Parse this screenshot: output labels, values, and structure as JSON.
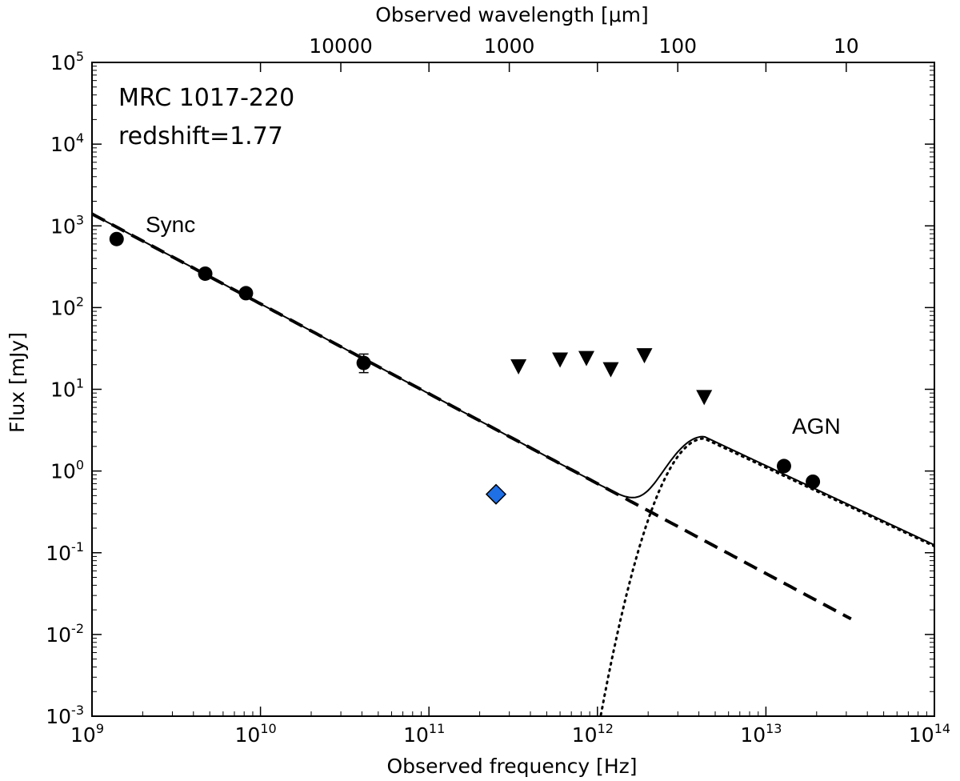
{
  "chart_data": {
    "type": "scatter",
    "annotations": {
      "source": "MRC 1017-220",
      "redshift": "redshift=1.77",
      "sync": "Sync",
      "agn": "AGN"
    },
    "xlabel": "Observed frequency [Hz]",
    "ylabel": "Flux [mJy]",
    "top_xlabel": "Observed wavelength [μm]",
    "xscale": "log",
    "yscale": "log",
    "xlim": [
      1000000000.0,
      100000000000000.0
    ],
    "ylim": [
      0.001,
      100000
    ],
    "x_ticks": [
      {
        "value": 1000000000.0,
        "base": "10",
        "exp": "9"
      },
      {
        "value": 10000000000.0,
        "base": "10",
        "exp": "10"
      },
      {
        "value": 100000000000.0,
        "base": "10",
        "exp": "11"
      },
      {
        "value": 1000000000000.0,
        "base": "10",
        "exp": "12"
      },
      {
        "value": 10000000000000.0,
        "base": "10",
        "exp": "13"
      },
      {
        "value": 100000000000000.0,
        "base": "10",
        "exp": "14"
      }
    ],
    "y_ticks": [
      {
        "value": 100000,
        "base": "10",
        "exp": "5"
      },
      {
        "value": 10000,
        "base": "10",
        "exp": "4"
      },
      {
        "value": 1000,
        "base": "10",
        "exp": "3"
      },
      {
        "value": 100,
        "base": "10",
        "exp": "2"
      },
      {
        "value": 10,
        "base": "10",
        "exp": "1"
      },
      {
        "value": 1,
        "base": "10",
        "exp": "0"
      },
      {
        "value": 0.1,
        "base": "10",
        "exp": "-1"
      },
      {
        "value": 0.01,
        "base": "10",
        "exp": "-2"
      },
      {
        "value": 0.001,
        "base": "10",
        "exp": "-3"
      }
    ],
    "top_ticks": [
      {
        "label": "10000",
        "wavelength_um": 10000
      },
      {
        "label": "1000",
        "wavelength_um": 1000
      },
      {
        "label": "100",
        "wavelength_um": 100
      },
      {
        "label": "10",
        "wavelength_um": 10
      }
    ],
    "detections": [
      {
        "x": 1400000000.0,
        "y": 690
      },
      {
        "x": 4700000000.0,
        "y": 260
      },
      {
        "x": 8200000000.0,
        "y": 150
      },
      {
        "x": 41000000000.0,
        "y": 21,
        "yerr_low": 16,
        "yerr_high": 27
      },
      {
        "x": 12800000000000.0,
        "y": 1.15
      },
      {
        "x": 19000000000000.0,
        "y": 0.74
      }
    ],
    "special_point": {
      "x": 250000000000.0,
      "y": 0.52,
      "color": "#1f6fe5"
    },
    "upper_limits": [
      {
        "x": 340000000000.0,
        "y": 19
      },
      {
        "x": 600000000000.0,
        "y": 23
      },
      {
        "x": 860000000000.0,
        "y": 24
      },
      {
        "x": 1200000000000.0,
        "y": 17.5
      },
      {
        "x": 1900000000000.0,
        "y": 26
      },
      {
        "x": 4300000000000.0,
        "y": 8
      }
    ],
    "sync_model": {
      "x0": 1000000000.0,
      "y0": 1400,
      "slope": -1.1
    },
    "agn_model": {
      "peak_x": 4300000000000.0,
      "peak_y": 2.5,
      "x_hi": 100000000000000.0,
      "y_hi": 0.12
    }
  }
}
